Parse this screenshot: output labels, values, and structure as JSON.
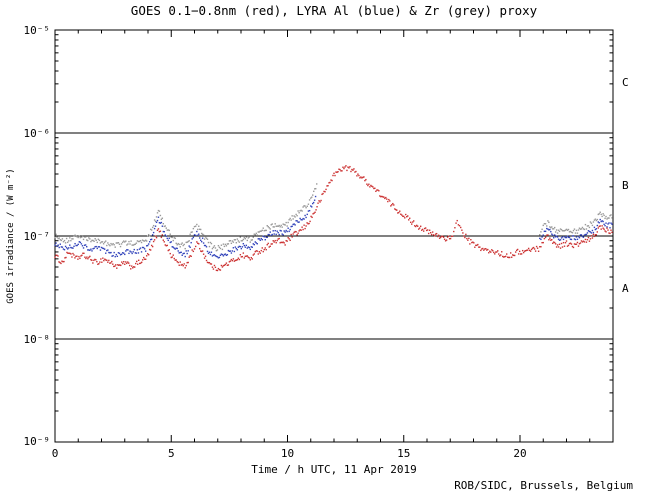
{
  "credit": "ROB/SIDC, Brussels, Belgium",
  "chart_data": {
    "type": "scatter",
    "title": "GOES 0.1−0.8nm (red), LYRA Al (blue) & Zr (grey) proxy",
    "xlabel": "Time / h UTC, 11 Apr 2019",
    "ylabel": "GOES irradiance / (W m⁻²)",
    "x_range": [
      0,
      24
    ],
    "y_range_log10": [
      -9,
      -5
    ],
    "grid": "off",
    "legend": "in-title",
    "background": "#ffffff",
    "axis_color": "#000000",
    "x_major_ticks": [
      0,
      5,
      10,
      15,
      20
    ],
    "x_tick_labels": [
      "0",
      "5",
      "10",
      "15",
      "20"
    ],
    "y_ticks": [
      {
        "exp": -5,
        "label": "10⁻⁵"
      },
      {
        "exp": -6,
        "label": "10⁻⁶"
      },
      {
        "exp": -7,
        "label": "10⁻⁷"
      },
      {
        "exp": -8,
        "label": "10⁻⁸"
      },
      {
        "exp": -9,
        "label": "10⁻⁹"
      }
    ],
    "hlines_log10": [
      -6,
      -7,
      -8
    ],
    "class_labels": [
      {
        "label": "C",
        "exp_mid": -5.5
      },
      {
        "label": "B",
        "exp_mid": -6.5
      },
      {
        "label": "A",
        "exp_mid": -7.5
      }
    ],
    "series": [
      {
        "id": "goes",
        "name": "GOES 0.1-0.8nm",
        "color": "#cc3333",
        "units": "W m^-2",
        "segments": [
          [
            [
              0.0,
              6.5e-08
            ],
            [
              0.3,
              5.5e-08
            ],
            [
              0.6,
              7e-08
            ],
            [
              0.9,
              6e-08
            ],
            [
              1.2,
              6.5e-08
            ],
            [
              1.5,
              6e-08
            ],
            [
              1.8,
              5.5e-08
            ],
            [
              2.1,
              6e-08
            ],
            [
              2.4,
              5.5e-08
            ],
            [
              2.7,
              5e-08
            ],
            [
              3.0,
              5.5e-08
            ],
            [
              3.3,
              5e-08
            ],
            [
              3.6,
              5.5e-08
            ],
            [
              3.9,
              6e-08
            ],
            [
              4.2,
              8e-08
            ],
            [
              4.45,
              1.15e-07
            ],
            [
              4.7,
              9e-08
            ],
            [
              5.0,
              6.5e-08
            ],
            [
              5.3,
              5.5e-08
            ],
            [
              5.6,
              5e-08
            ],
            [
              5.9,
              7e-08
            ],
            [
              6.1,
              8.5e-08
            ],
            [
              6.35,
              7e-08
            ],
            [
              6.6,
              5.5e-08
            ],
            [
              6.9,
              4.8e-08
            ],
            [
              7.2,
              5e-08
            ],
            [
              7.5,
              5.5e-08
            ],
            [
              7.8,
              6e-08
            ],
            [
              8.1,
              6.5e-08
            ],
            [
              8.4,
              6e-08
            ],
            [
              8.7,
              7e-08
            ],
            [
              9.0,
              7.5e-08
            ],
            [
              9.3,
              8.5e-08
            ],
            [
              9.6,
              9e-08
            ],
            [
              9.9,
              8.5e-08
            ],
            [
              10.2,
              1e-07
            ],
            [
              10.5,
              1.1e-07
            ],
            [
              10.8,
              1.25e-07
            ],
            [
              11.1,
              1.6e-07
            ],
            [
              11.4,
              2.2e-07
            ],
            [
              11.7,
              3e-07
            ],
            [
              12.0,
              3.9e-07
            ],
            [
              12.3,
              4.5e-07
            ],
            [
              12.6,
              4.6e-07
            ],
            [
              12.9,
              4.2e-07
            ],
            [
              13.2,
              3.7e-07
            ],
            [
              13.5,
              3.2e-07
            ],
            [
              13.8,
              2.8e-07
            ],
            [
              14.1,
              2.4e-07
            ],
            [
              14.4,
              2.1e-07
            ],
            [
              14.7,
              1.8e-07
            ],
            [
              15.0,
              1.6e-07
            ],
            [
              15.3,
              1.4e-07
            ],
            [
              15.6,
              1.25e-07
            ],
            [
              15.9,
              1.15e-07
            ],
            [
              16.2,
              1.05e-07
            ],
            [
              16.5,
              1e-07
            ],
            [
              16.8,
              9.5e-08
            ],
            [
              17.1,
              9.5e-08
            ],
            [
              17.3,
              1.45e-07
            ],
            [
              17.5,
              1.1e-07
            ],
            [
              17.8,
              9e-08
            ],
            [
              18.1,
              8e-08
            ],
            [
              18.4,
              7.5e-08
            ],
            [
              18.7,
              7e-08
            ],
            [
              19.0,
              7e-08
            ],
            [
              19.3,
              6.5e-08
            ],
            [
              19.6,
              6.5e-08
            ],
            [
              19.9,
              7e-08
            ],
            [
              20.2,
              7e-08
            ],
            [
              20.5,
              7.5e-08
            ],
            [
              20.8,
              7.5e-08
            ],
            [
              21.0,
              9e-08
            ],
            [
              21.2,
              1e-07
            ],
            [
              21.45,
              8.5e-08
            ],
            [
              21.7,
              8e-08
            ],
            [
              22.0,
              8.5e-08
            ],
            [
              22.3,
              8e-08
            ],
            [
              22.6,
              8.5e-08
            ],
            [
              22.9,
              9e-08
            ],
            [
              23.2,
              1e-07
            ],
            [
              23.45,
              1.25e-07
            ],
            [
              23.7,
              1.15e-07
            ],
            [
              24.0,
              1.1e-07
            ]
          ]
        ]
      },
      {
        "id": "lyra-al",
        "name": "LYRA Al proxy",
        "color": "#3344bb",
        "units": "W m^-2",
        "segments": [
          [
            [
              0.0,
              8.5e-08
            ],
            [
              0.5,
              7.5e-08
            ],
            [
              1.0,
              8.5e-08
            ],
            [
              1.5,
              7.5e-08
            ],
            [
              2.0,
              7.5e-08
            ],
            [
              2.5,
              6.5e-08
            ],
            [
              3.0,
              7e-08
            ],
            [
              3.5,
              7e-08
            ],
            [
              3.9,
              7.5e-08
            ],
            [
              4.2,
              1e-07
            ],
            [
              4.45,
              1.5e-07
            ],
            [
              4.7,
              1.1e-07
            ],
            [
              5.0,
              8.5e-08
            ],
            [
              5.3,
              7e-08
            ],
            [
              5.6,
              6.5e-08
            ],
            [
              5.9,
              9e-08
            ],
            [
              6.1,
              1.05e-07
            ],
            [
              6.35,
              9e-08
            ],
            [
              6.6,
              7e-08
            ],
            [
              6.9,
              6.2e-08
            ],
            [
              7.2,
              6.5e-08
            ],
            [
              7.5,
              7e-08
            ],
            [
              7.8,
              7.5e-08
            ],
            [
              8.1,
              8e-08
            ],
            [
              8.4,
              7.8e-08
            ],
            [
              8.7,
              8.8e-08
            ],
            [
              9.0,
              9.5e-08
            ],
            [
              9.3,
              1.05e-07
            ],
            [
              9.6,
              1.1e-07
            ],
            [
              9.9,
              1.05e-07
            ],
            [
              10.2,
              1.25e-07
            ],
            [
              10.5,
              1.4e-07
            ],
            [
              10.8,
              1.6e-07
            ],
            [
              11.0,
              1.9e-07
            ],
            [
              11.25,
              2.6e-07
            ]
          ],
          [
            [
              20.85,
              9e-08
            ],
            [
              21.0,
              1.05e-07
            ],
            [
              21.2,
              1.15e-07
            ],
            [
              21.45,
              1e-07
            ],
            [
              21.7,
              9.5e-08
            ],
            [
              22.0,
              1e-07
            ],
            [
              22.3,
              9.5e-08
            ],
            [
              22.6,
              1e-07
            ],
            [
              22.9,
              1.05e-07
            ],
            [
              23.2,
              1.15e-07
            ],
            [
              23.45,
              1.4e-07
            ],
            [
              23.7,
              1.3e-07
            ],
            [
              24.0,
              1.25e-07
            ]
          ]
        ]
      },
      {
        "id": "lyra-zr",
        "name": "LYRA Zr proxy",
        "color": "#999999",
        "units": "W m^-2",
        "segments": [
          [
            [
              0.0,
              1e-07
            ],
            [
              0.5,
              9e-08
            ],
            [
              1.0,
              1e-07
            ],
            [
              1.5,
              9e-08
            ],
            [
              2.0,
              9e-08
            ],
            [
              2.5,
              8e-08
            ],
            [
              3.0,
              8.5e-08
            ],
            [
              3.5,
              8.5e-08
            ],
            [
              3.9,
              9e-08
            ],
            [
              4.2,
              1.2e-07
            ],
            [
              4.45,
              1.8e-07
            ],
            [
              4.7,
              1.3e-07
            ],
            [
              5.0,
              1e-07
            ],
            [
              5.3,
              8.5e-08
            ],
            [
              5.6,
              7.8e-08
            ],
            [
              5.9,
              1.1e-07
            ],
            [
              6.1,
              1.25e-07
            ],
            [
              6.35,
              1.05e-07
            ],
            [
              6.6,
              8.5e-08
            ],
            [
              6.9,
              7.5e-08
            ],
            [
              7.2,
              7.8e-08
            ],
            [
              7.5,
              8.5e-08
            ],
            [
              7.8,
              9e-08
            ],
            [
              8.1,
              9.5e-08
            ],
            [
              8.4,
              9.2e-08
            ],
            [
              8.7,
              1.05e-07
            ],
            [
              9.0,
              1.15e-07
            ],
            [
              9.3,
              1.25e-07
            ],
            [
              9.6,
              1.3e-07
            ],
            [
              9.9,
              1.25e-07
            ],
            [
              10.2,
              1.5e-07
            ],
            [
              10.5,
              1.7e-07
            ],
            [
              10.8,
              1.95e-07
            ],
            [
              11.0,
              2.3e-07
            ],
            [
              11.3,
              3.2e-07
            ]
          ],
          [
            [
              20.85,
              1.05e-07
            ],
            [
              21.0,
              1.25e-07
            ],
            [
              21.2,
              1.35e-07
            ],
            [
              21.45,
              1.15e-07
            ],
            [
              21.7,
              1.1e-07
            ],
            [
              22.0,
              1.15e-07
            ],
            [
              22.3,
              1.1e-07
            ],
            [
              22.6,
              1.15e-07
            ],
            [
              22.9,
              1.25e-07
            ],
            [
              23.2,
              1.35e-07
            ],
            [
              23.45,
              1.65e-07
            ],
            [
              23.7,
              1.55e-07
            ],
            [
              24.0,
              1.5e-07
            ]
          ]
        ]
      }
    ]
  }
}
